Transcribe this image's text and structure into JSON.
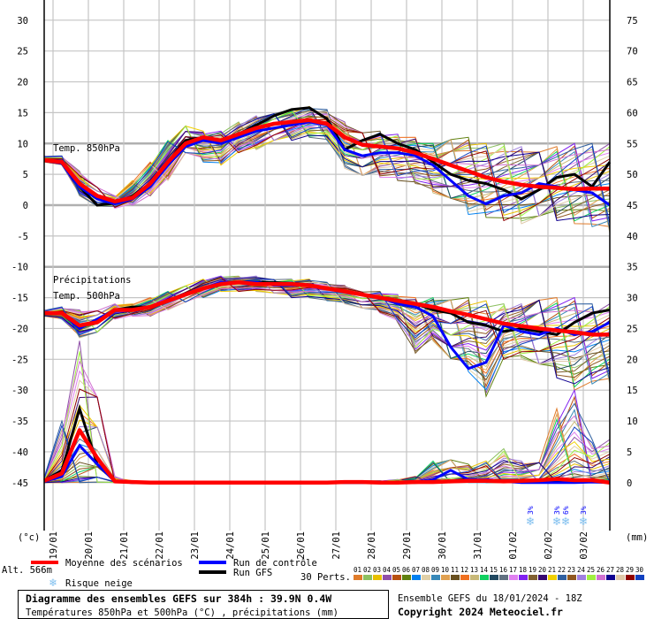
{
  "chart_data": {
    "type": "line",
    "title": "Diagramme des ensembles GEFS sur 384h : 39.9N 0.4W",
    "subtitle": "Températures 850hPa et 500hPa (°C) , précipitations (mm)",
    "run_info": "Ensemble GEFS du 18/01/2024 - 18Z",
    "copyright": "Copyright 2024 Meteociel.fr",
    "altitude": "Alt. 566m",
    "left_unit": "(°c)",
    "right_unit": "(mm)",
    "left_ylim": [
      -45,
      30
    ],
    "right_ylim": [
      0,
      75
    ],
    "left_ticks": [
      30,
      25,
      20,
      15,
      10,
      5,
      0,
      -5,
      -10,
      -15,
      -20,
      -25,
      -30,
      -35,
      -40,
      -45
    ],
    "right_ticks": [
      75,
      70,
      65,
      60,
      55,
      50,
      45,
      40,
      35,
      30,
      25,
      20,
      15,
      10,
      5,
      0
    ],
    "x_step_hours": 12,
    "x_range_hours": [
      0,
      384
    ],
    "date_labels": [
      "19/01",
      "20/01",
      "21/01",
      "22/01",
      "23/01",
      "24/01",
      "25/01",
      "26/01",
      "27/01",
      "28/01",
      "29/01",
      "30/01",
      "31/01",
      "01/02",
      "02/02",
      "03/02"
    ],
    "panel_labels": {
      "t850": "Temp. 850hPa",
      "precip": "Précipitations",
      "t500": "Temp. 500hPa"
    },
    "t850": {
      "mean": [
        7.3,
        7.0,
        3.5,
        1.5,
        0.6,
        1.2,
        3.5,
        7.0,
        10.0,
        11.0,
        10.5,
        11.5,
        12.5,
        13.2,
        13.5,
        13.8,
        13.2,
        11.0,
        9.8,
        9.5,
        9.2,
        8.5,
        7.5,
        6.5,
        5.5,
        4.5,
        3.8,
        3.3,
        3.0,
        2.8,
        2.6,
        2.7,
        2.7
      ],
      "control": [
        7.2,
        6.8,
        3.0,
        1.0,
        0.2,
        1.0,
        3.0,
        6.5,
        9.5,
        10.5,
        10.0,
        11.0,
        12.0,
        12.5,
        13.0,
        13.5,
        13.0,
        9.0,
        8.0,
        8.5,
        8.5,
        8.0,
        6.5,
        4.0,
        1.5,
        0.2,
        1.5,
        2.0,
        3.5,
        3.0,
        2.5,
        2.0,
        0.0
      ],
      "gfs": [
        7.2,
        6.8,
        3.0,
        0.0,
        0.3,
        1.5,
        3.5,
        7.0,
        10.5,
        11.0,
        10.5,
        11.5,
        13.0,
        14.5,
        15.5,
        15.8,
        14.0,
        9.0,
        10.5,
        11.5,
        10.0,
        9.0,
        7.0,
        5.0,
        4.0,
        3.5,
        2.5,
        1.0,
        2.5,
        4.5,
        5.0,
        3.0,
        7.0
      ],
      "pert_min": [
        7.0,
        6.5,
        1.5,
        -0.5,
        -0.5,
        0.0,
        1.5,
        4.0,
        8.0,
        7.0,
        6.5,
        8.5,
        9.0,
        10.0,
        10.5,
        11.0,
        10.5,
        6.0,
        4.0,
        4.5,
        4.0,
        3.5,
        2.0,
        0.0,
        -1.5,
        -2.0,
        -2.5,
        -3.0,
        -3.0,
        -2.5,
        -3.0,
        -3.5,
        -4.5
      ],
      "pert_max": [
        8.0,
        8.0,
        5.5,
        3.0,
        1.5,
        4.0,
        7.0,
        10.5,
        13.0,
        12.0,
        12.0,
        13.5,
        14.5,
        15.0,
        15.5,
        16.0,
        15.5,
        13.5,
        12.0,
        12.0,
        11.5,
        11.0,
        10.0,
        11.0,
        11.0,
        10.0,
        10.0,
        9.5,
        9.0,
        9.5,
        10.0,
        10.0,
        10.0
      ]
    },
    "t500": {
      "mean": [
        -17.5,
        -17.5,
        -19.5,
        -19.0,
        -17.0,
        -17.0,
        -16.5,
        -15.5,
        -14.5,
        -13.5,
        -12.8,
        -12.5,
        -12.8,
        -12.8,
        -12.8,
        -13.0,
        -13.5,
        -14.0,
        -14.5,
        -15.0,
        -15.5,
        -16.0,
        -16.5,
        -17.2,
        -17.8,
        -18.5,
        -19.2,
        -19.6,
        -20.0,
        -20.3,
        -20.6,
        -21.0,
        -21.0
      ],
      "control": [
        -17.5,
        -17.5,
        -20.0,
        -18.5,
        -17.0,
        -17.0,
        -16.5,
        -15.5,
        -14.5,
        -13.5,
        -12.5,
        -12.5,
        -12.5,
        -13.0,
        -13.0,
        -13.0,
        -13.5,
        -14.0,
        -14.5,
        -15.0,
        -16.0,
        -16.5,
        -18.0,
        -23.0,
        -26.5,
        -25.5,
        -19.5,
        -20.5,
        -21.0,
        -20.0,
        -21.0,
        -20.5,
        -19.0
      ],
      "gfs": [
        -17.5,
        -17.5,
        -20.0,
        -18.5,
        -17.0,
        -16.5,
        -16.5,
        -15.5,
        -14.5,
        -13.5,
        -12.8,
        -12.5,
        -12.5,
        -12.5,
        -12.7,
        -13.0,
        -13.5,
        -14.0,
        -14.5,
        -15.0,
        -15.5,
        -16.0,
        -17.0,
        -17.5,
        -19.0,
        -19.5,
        -20.5,
        -20.0,
        -20.5,
        -21.0,
        -19.0,
        -17.5,
        -17.0
      ],
      "pert_min": [
        -18.0,
        -18.5,
        -21.5,
        -21.0,
        -18.5,
        -18.0,
        -18.0,
        -17.0,
        -16.0,
        -15.0,
        -14.0,
        -14.0,
        -14.0,
        -14.5,
        -15.0,
        -15.0,
        -15.5,
        -16.0,
        -17.0,
        -17.5,
        -19.0,
        -24.0,
        -22.0,
        -26.0,
        -27.0,
        -31.0,
        -25.0,
        -25.0,
        -27.0,
        -28.0,
        -30.0,
        -29.0,
        -29.0
      ],
      "pert_max": [
        -17.0,
        -16.5,
        -17.0,
        -17.0,
        -16.0,
        -16.0,
        -15.0,
        -14.0,
        -13.0,
        -12.0,
        -11.5,
        -11.5,
        -11.5,
        -12.0,
        -12.0,
        -12.0,
        -12.5,
        -13.0,
        -14.0,
        -14.0,
        -14.5,
        -15.0,
        -15.0,
        -15.0,
        -15.0,
        -15.5,
        -16.0,
        -16.0,
        -15.0,
        -15.0,
        -15.0,
        -16.0,
        -16.0
      ]
    },
    "precip_mm": {
      "mean": [
        0.3,
        1.5,
        8.5,
        4.0,
        0.2,
        0.1,
        0,
        0,
        0,
        0,
        0,
        0,
        0,
        0,
        0,
        0,
        0,
        0.1,
        0.1,
        0,
        0,
        0.1,
        0.1,
        0.2,
        0.3,
        0.3,
        0.2,
        0.3,
        0.4,
        0.6,
        0.4,
        0.4,
        0.0
      ],
      "control": [
        0.2,
        1.0,
        6.0,
        3.0,
        0.2,
        0,
        0,
        0,
        0,
        0,
        0,
        0,
        0,
        0,
        0,
        0,
        0,
        0,
        0,
        0,
        0,
        0.1,
        0.5,
        2.0,
        0.5,
        0.5,
        0.2,
        0,
        0,
        0,
        0,
        0.1,
        0
      ],
      "gfs": [
        0.3,
        2.0,
        12.0,
        3.0,
        0.2,
        0,
        0,
        0,
        0,
        0,
        0,
        0,
        0,
        0,
        0,
        0,
        0,
        0,
        0,
        0,
        0,
        0,
        0.2,
        0.3,
        0.5,
        0.2,
        0.3,
        0.2,
        0.1,
        0.2,
        0.1,
        0.2,
        0
      ],
      "pert_min": [
        0,
        0,
        0,
        0,
        0,
        0,
        0,
        0,
        0,
        0,
        0,
        0,
        0,
        0,
        0,
        0,
        0,
        0,
        0,
        0,
        0,
        0,
        0,
        0,
        0,
        0,
        0,
        0,
        0,
        0,
        0,
        0,
        0
      ],
      "pert_max": [
        1.0,
        10.0,
        23.0,
        15.0,
        1.0,
        0.3,
        0.2,
        0,
        0,
        0,
        0,
        0,
        0,
        0,
        0,
        0,
        0,
        0.3,
        0.3,
        0.3,
        0.5,
        1.0,
        3.5,
        4.0,
        3.0,
        3.5,
        5.5,
        3.5,
        3.5,
        12.0,
        15.0,
        7.0,
        7.0
      ]
    },
    "snow_risk": [
      {
        "hour": 330,
        "percent": "3%"
      },
      {
        "hour": 348,
        "percent": "3%"
      },
      {
        "hour": 354,
        "percent": "6%"
      },
      {
        "hour": 366,
        "percent": "3%"
      }
    ],
    "legend": {
      "mean": {
        "label": "Moyenne des scénarios",
        "color": "#ff0000"
      },
      "control": {
        "label": "Run de contrôle",
        "color": "#0000ff"
      },
      "gfs": {
        "label": "Run GFS",
        "color": "#000000"
      },
      "snow": {
        "label": "Risque neige",
        "color": "#9fd0f0"
      },
      "perts_label": "30 Perts.",
      "perts": [
        {
          "id": "01",
          "color": "#e07b2a"
        },
        {
          "id": "02",
          "color": "#8cc060"
        },
        {
          "id": "03",
          "color": "#e8c000"
        },
        {
          "id": "04",
          "color": "#9050a8"
        },
        {
          "id": "05",
          "color": "#b85010"
        },
        {
          "id": "06",
          "color": "#608010"
        },
        {
          "id": "07",
          "color": "#0080f0"
        },
        {
          "id": "08",
          "color": "#e0d0a8"
        },
        {
          "id": "09",
          "color": "#3888b8"
        },
        {
          "id": "10",
          "color": "#e0a050"
        },
        {
          "id": "11",
          "color": "#685020"
        },
        {
          "id": "12",
          "color": "#f07020"
        },
        {
          "id": "13",
          "color": "#c8b878"
        },
        {
          "id": "14",
          "color": "#10d060"
        },
        {
          "id": "15",
          "color": "#204860"
        },
        {
          "id": "16",
          "color": "#607080"
        },
        {
          "id": "17",
          "color": "#e080f0"
        },
        {
          "id": "18",
          "color": "#8020f0"
        },
        {
          "id": "19",
          "color": "#806030"
        },
        {
          "id": "20",
          "color": "#380870"
        },
        {
          "id": "21",
          "color": "#f0d000"
        },
        {
          "id": "22",
          "color": "#3060a0"
        },
        {
          "id": "23",
          "color": "#905820"
        },
        {
          "id": "24",
          "color": "#a080e0"
        },
        {
          "id": "25",
          "color": "#a0f040"
        },
        {
          "id": "26",
          "color": "#d070d0"
        },
        {
          "id": "27",
          "color": "#100090"
        },
        {
          "id": "28",
          "color": "#e0c8a8"
        },
        {
          "id": "29",
          "color": "#900000"
        },
        {
          "id": "30",
          "color": "#1040c0"
        }
      ]
    }
  }
}
